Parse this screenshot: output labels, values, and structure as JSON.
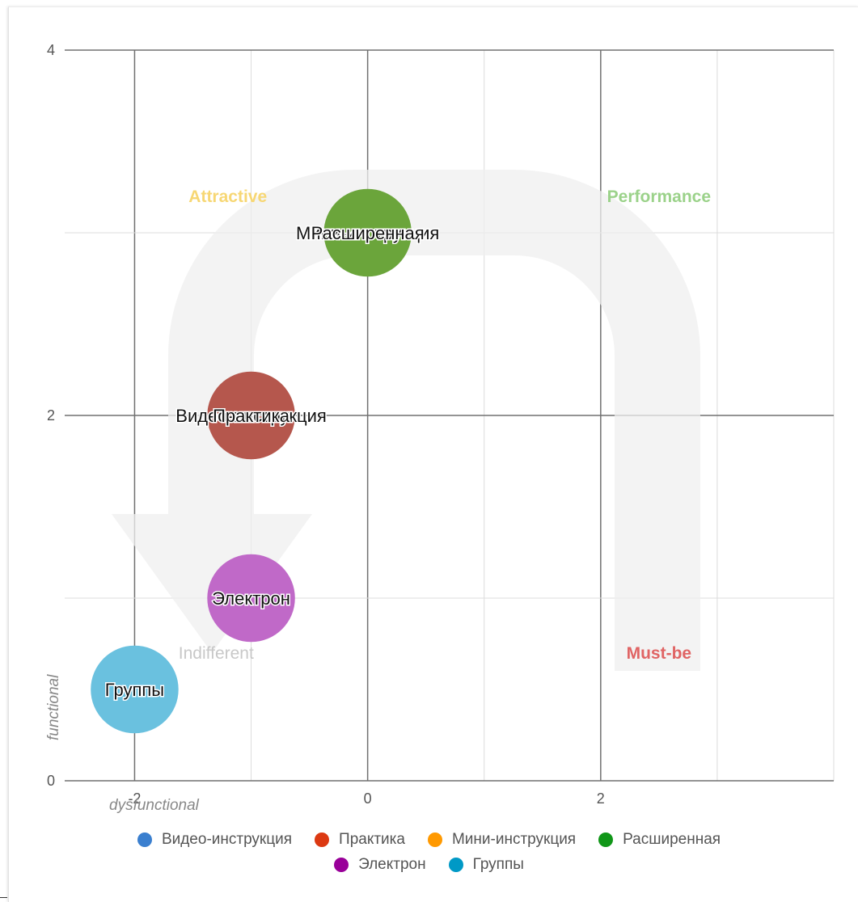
{
  "chart_data": {
    "type": "scatter",
    "title": "",
    "xlabel": "dysfunctional",
    "ylabel": "functional",
    "xlim": [
      -2.6,
      4.0
    ],
    "ylim": [
      0,
      4
    ],
    "x_ticks": [
      {
        "value": -2,
        "label": "-2"
      },
      {
        "value": 0,
        "label": "0"
      },
      {
        "value": 2,
        "label": "2"
      }
    ],
    "y_ticks": [
      {
        "value": 0,
        "label": "0"
      },
      {
        "value": 2,
        "label": "2"
      },
      {
        "value": 4,
        "label": "4"
      }
    ],
    "grid": true,
    "legend_position": "bottom",
    "quadrants": [
      {
        "label": "Attractive",
        "x": -1.2,
        "y": 3.2,
        "color": "#f7d774"
      },
      {
        "label": "Performance",
        "x": 2.5,
        "y": 3.2,
        "color": "#9bd28a"
      },
      {
        "label": "Indifferent",
        "x": -1.3,
        "y": 0.7,
        "color": "#c8c8c8"
      },
      {
        "label": "Must-be",
        "x": 2.5,
        "y": 0.7,
        "color": "#e06464"
      }
    ],
    "series": [
      {
        "name": "Видео-инструкция",
        "color": "#3a7fcf",
        "x": -1,
        "y": 2,
        "bubble": false
      },
      {
        "name": "Практика",
        "color": "#dc3912",
        "x": -1,
        "y": 2,
        "bubble": true
      },
      {
        "name": "Мини-инструкция",
        "color": "#ff9900",
        "x": 0,
        "y": 3,
        "bubble": false
      },
      {
        "name": "Расширенная",
        "color": "#109618",
        "x": 0,
        "y": 3,
        "bubble": true
      },
      {
        "name": "Электрон",
        "color": "#990099",
        "x": -1,
        "y": 1,
        "bubble": true
      },
      {
        "name": "Группы",
        "color": "#0099c6",
        "x": -2,
        "y": 0.5,
        "bubble": true
      }
    ],
    "bubble_colors": {
      "Практика": "#b5574d",
      "Расширенная": "#6ba53b",
      "Электрон": "#c069c8",
      "Группы": "#6ac1df"
    },
    "bubble_labels": [
      {
        "text": "Видео-инструкция",
        "x": -1,
        "y": 2
      },
      {
        "text": "Практика",
        "x": -1,
        "y": 2
      },
      {
        "text": "Мини-инструкция",
        "x": 0,
        "y": 3
      },
      {
        "text": "Расширенная",
        "x": 0,
        "y": 3
      },
      {
        "text": "Электрон",
        "x": -1,
        "y": 1
      },
      {
        "text": "Группы",
        "x": -2,
        "y": 0.5
      }
    ]
  }
}
